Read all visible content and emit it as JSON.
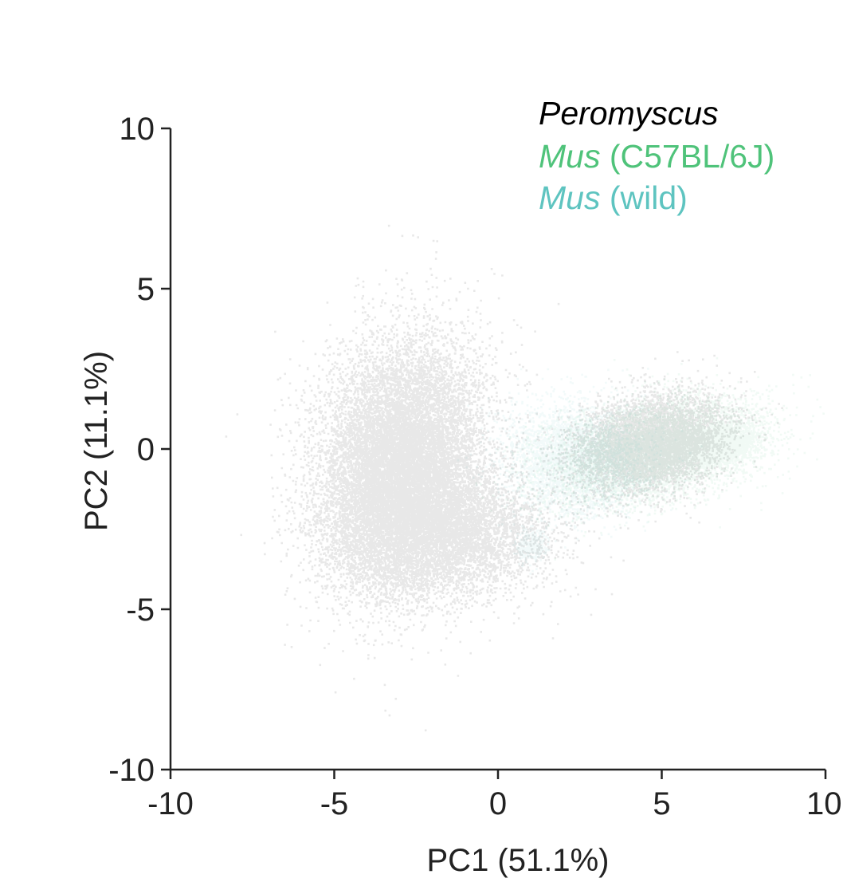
{
  "chart_data": {
    "type": "scatter",
    "xlabel": "PC1 (51.1%)",
    "ylabel": "PC2 (11.1%)",
    "xlim": [
      -10,
      10
    ],
    "ylim": [
      -10,
      10
    ],
    "x_ticks": [
      "-10",
      "-5",
      "0",
      "5",
      "10"
    ],
    "y_ticks": [
      "-10",
      "-5",
      "0",
      "5",
      "10"
    ],
    "x_tick_values": [
      -10,
      -5,
      0,
      5,
      10
    ],
    "y_tick_values": [
      -10,
      -5,
      0,
      5,
      10
    ],
    "grid": false,
    "legend_position": "top-right",
    "series": [
      {
        "legend_italic": "Peromyscus",
        "legend_rest": "",
        "color": "#000000",
        "clusters": [
          {
            "cx": -3.0,
            "cy": -0.5,
            "sx": 1.25,
            "sy": 1.9,
            "rho": 0.15,
            "n": 14000
          },
          {
            "cx": -1.6,
            "cy": -2.6,
            "sx": 1.6,
            "sy": 1.0,
            "rho": 0.0,
            "n": 5000
          },
          {
            "cx": 4.6,
            "cy": 0.2,
            "sx": 1.15,
            "sy": 0.75,
            "rho": 0.25,
            "n": 6000
          }
        ]
      },
      {
        "legend_italic": "Mus",
        "legend_rest": " (C57BL/6J)",
        "color": "#4fc37a",
        "clusters": [
          {
            "cx": 4.8,
            "cy": 0.0,
            "sx": 1.6,
            "sy": 0.8,
            "rho": 0.35,
            "n": 5500
          },
          {
            "cx": 6.8,
            "cy": 0.2,
            "sx": 0.6,
            "sy": 0.35,
            "rho": 0.3,
            "n": 1500
          }
        ]
      },
      {
        "legend_italic": "Mus",
        "legend_rest": " (wild)",
        "color": "#5ec4c0",
        "clusters": [
          {
            "cx": 2.3,
            "cy": -0.3,
            "sx": 1.1,
            "sy": 0.9,
            "rho": 0.0,
            "n": 3000
          },
          {
            "cx": 1.0,
            "cy": -3.0,
            "sx": 0.25,
            "sy": 0.25,
            "rho": 0.0,
            "n": 300
          }
        ]
      }
    ]
  }
}
